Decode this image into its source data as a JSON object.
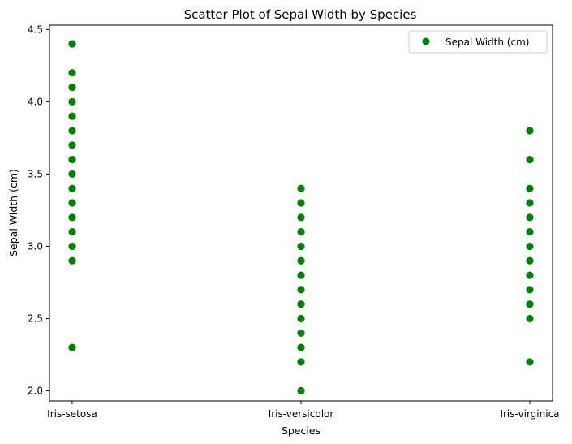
{
  "chart_data": {
    "type": "scatter",
    "title": "Scatter Plot of Sepal Width by Species",
    "xlabel": "Species",
    "ylabel": "Sepal Width (cm)",
    "categories": [
      "Iris-setosa",
      "Iris-versicolor",
      "Iris-virginica"
    ],
    "ylim": [
      1.93,
      4.53
    ],
    "yticks": [
      "2.0",
      "2.5",
      "3.0",
      "3.5",
      "4.0",
      "4.5"
    ],
    "grid": false,
    "legend_position": "top-right",
    "point_color": "#008000",
    "series": [
      {
        "name": "Sepal Width (cm)",
        "points": [
          {
            "x": "Iris-setosa",
            "y": 4.4
          },
          {
            "x": "Iris-setosa",
            "y": 4.2
          },
          {
            "x": "Iris-setosa",
            "y": 4.1
          },
          {
            "x": "Iris-setosa",
            "y": 4.0
          },
          {
            "x": "Iris-setosa",
            "y": 3.9
          },
          {
            "x": "Iris-setosa",
            "y": 3.8
          },
          {
            "x": "Iris-setosa",
            "y": 3.7
          },
          {
            "x": "Iris-setosa",
            "y": 3.6
          },
          {
            "x": "Iris-setosa",
            "y": 3.5
          },
          {
            "x": "Iris-setosa",
            "y": 3.4
          },
          {
            "x": "Iris-setosa",
            "y": 3.3
          },
          {
            "x": "Iris-setosa",
            "y": 3.2
          },
          {
            "x": "Iris-setosa",
            "y": 3.1
          },
          {
            "x": "Iris-setosa",
            "y": 3.0
          },
          {
            "x": "Iris-setosa",
            "y": 2.9
          },
          {
            "x": "Iris-setosa",
            "y": 2.3
          },
          {
            "x": "Iris-versicolor",
            "y": 3.4
          },
          {
            "x": "Iris-versicolor",
            "y": 3.3
          },
          {
            "x": "Iris-versicolor",
            "y": 3.2
          },
          {
            "x": "Iris-versicolor",
            "y": 3.1
          },
          {
            "x": "Iris-versicolor",
            "y": 3.0
          },
          {
            "x": "Iris-versicolor",
            "y": 2.9
          },
          {
            "x": "Iris-versicolor",
            "y": 2.8
          },
          {
            "x": "Iris-versicolor",
            "y": 2.7
          },
          {
            "x": "Iris-versicolor",
            "y": 2.6
          },
          {
            "x": "Iris-versicolor",
            "y": 2.5
          },
          {
            "x": "Iris-versicolor",
            "y": 2.4
          },
          {
            "x": "Iris-versicolor",
            "y": 2.3
          },
          {
            "x": "Iris-versicolor",
            "y": 2.2
          },
          {
            "x": "Iris-versicolor",
            "y": 2.0
          },
          {
            "x": "Iris-virginica",
            "y": 3.8
          },
          {
            "x": "Iris-virginica",
            "y": 3.6
          },
          {
            "x": "Iris-virginica",
            "y": 3.4
          },
          {
            "x": "Iris-virginica",
            "y": 3.3
          },
          {
            "x": "Iris-virginica",
            "y": 3.2
          },
          {
            "x": "Iris-virginica",
            "y": 3.1
          },
          {
            "x": "Iris-virginica",
            "y": 3.0
          },
          {
            "x": "Iris-virginica",
            "y": 2.9
          },
          {
            "x": "Iris-virginica",
            "y": 2.8
          },
          {
            "x": "Iris-virginica",
            "y": 2.7
          },
          {
            "x": "Iris-virginica",
            "y": 2.6
          },
          {
            "x": "Iris-virginica",
            "y": 2.5
          },
          {
            "x": "Iris-virginica",
            "y": 2.2
          }
        ]
      }
    ]
  }
}
